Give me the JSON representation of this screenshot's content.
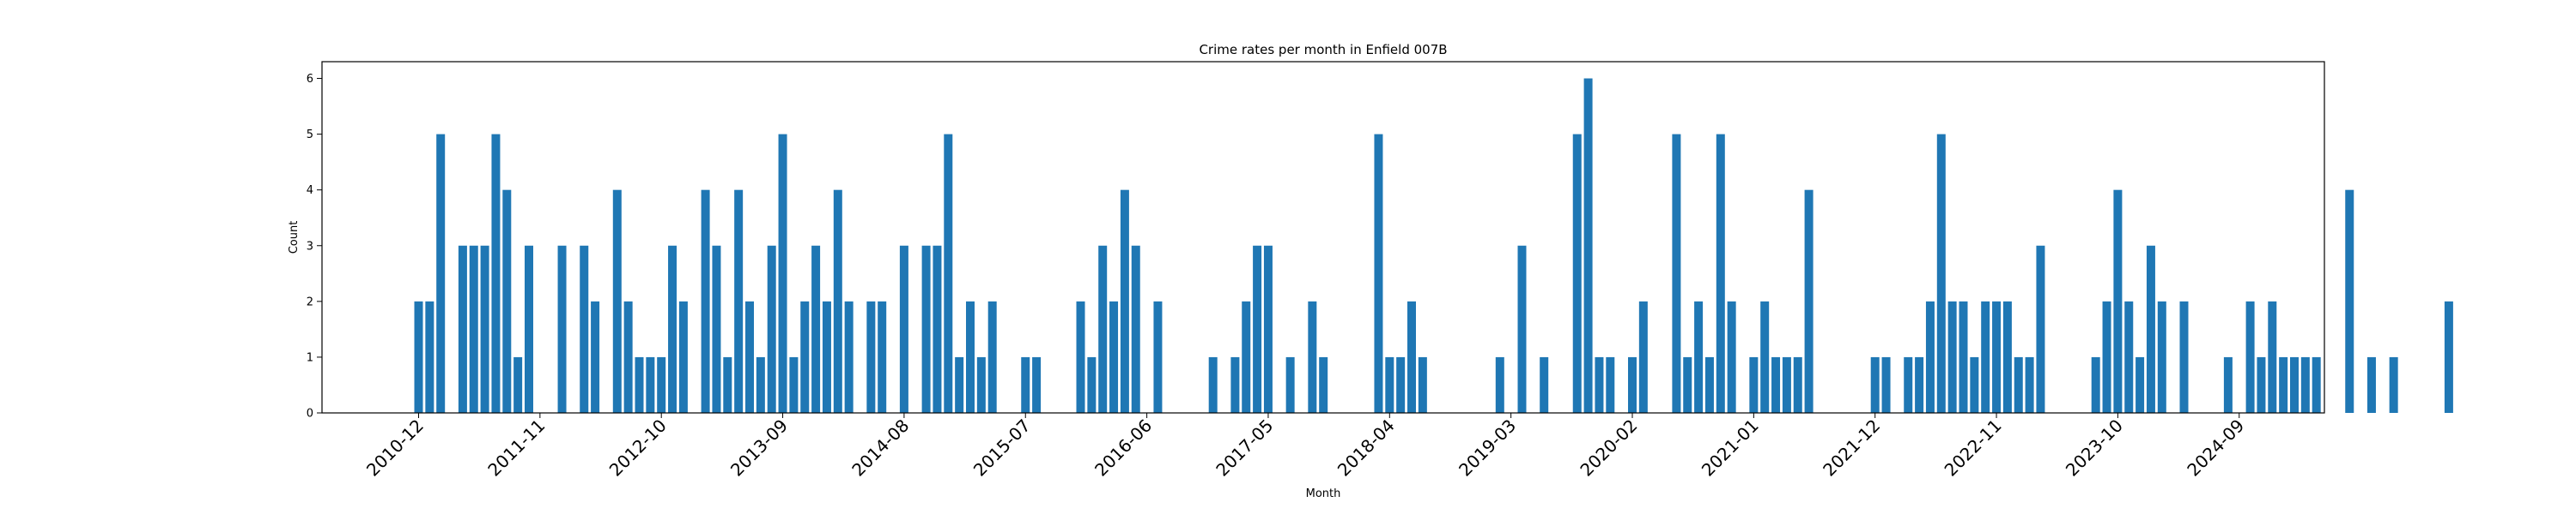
{
  "chart_data": {
    "type": "bar",
    "title": "Crime rates per month in Enfield 007B",
    "xlabel": "Month",
    "ylabel": "Count",
    "ylim": [
      0,
      6.3
    ],
    "yticks": [
      0,
      1,
      2,
      3,
      4,
      5,
      6
    ],
    "xticks": [
      "2010-12",
      "2011-11",
      "2012-10",
      "2013-09",
      "2014-08",
      "2015-07",
      "2016-06",
      "2017-05",
      "2018-04",
      "2019-03",
      "2020-02",
      "2021-01",
      "2021-12",
      "2022-11",
      "2023-10",
      "2024-09"
    ],
    "color": "#1f77b4",
    "grid": false,
    "start_month": "2010-12",
    "values": [
      2,
      2,
      5,
      0,
      3,
      3,
      3,
      5,
      4,
      1,
      3,
      0,
      0,
      3,
      0,
      3,
      2,
      0,
      4,
      2,
      1,
      1,
      1,
      3,
      2,
      0,
      4,
      3,
      1,
      4,
      2,
      1,
      3,
      5,
      1,
      2,
      3,
      2,
      4,
      2,
      0,
      2,
      2,
      0,
      3,
      0,
      3,
      3,
      5,
      1,
      2,
      1,
      2,
      0,
      0,
      1,
      1,
      0,
      0,
      0,
      2,
      1,
      3,
      2,
      4,
      3,
      0,
      2,
      0,
      0,
      0,
      0,
      1,
      0,
      1,
      2,
      3,
      3,
      0,
      1,
      0,
      2,
      1,
      0,
      0,
      0,
      0,
      5,
      1,
      1,
      2,
      1,
      0,
      0,
      0,
      0,
      0,
      0,
      1,
      0,
      3,
      0,
      1,
      0,
      0,
      5,
      6,
      1,
      1,
      0,
      1,
      2,
      0,
      0,
      5,
      1,
      2,
      1,
      5,
      2,
      0,
      1,
      2,
      1,
      1,
      1,
      4,
      0,
      0,
      0,
      0,
      0,
      1,
      1,
      0,
      1,
      1,
      2,
      5,
      2,
      2,
      1,
      2,
      2,
      2,
      1,
      1,
      3,
      0,
      0,
      0,
      0,
      1,
      2,
      4,
      2,
      1,
      3,
      2,
      0,
      2,
      0,
      0,
      0,
      1,
      0,
      2,
      1,
      2,
      1,
      1,
      1,
      1,
      0,
      0,
      4,
      0,
      1,
      0,
      1,
      0,
      0,
      0,
      0,
      2
    ]
  }
}
